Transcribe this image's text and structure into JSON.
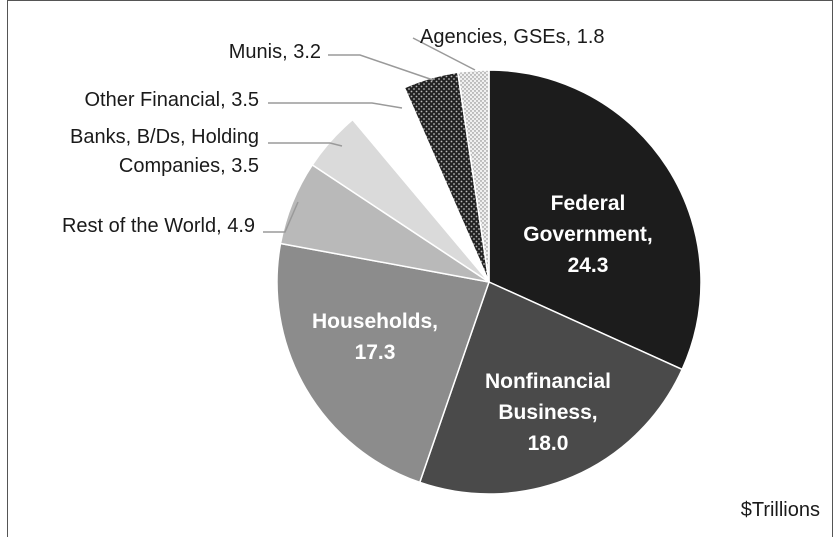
{
  "chart_data": {
    "type": "pie",
    "unit_label": "$Trillions",
    "slices": [
      {
        "name": "Federal Government,",
        "value": 24.3,
        "color": "#1c1c1c",
        "label_lines": [
          "Federal",
          "Government,",
          "24.3"
        ],
        "inside": true
      },
      {
        "name": "Nonfinancial Business,",
        "value": 18.0,
        "color": "#4a4a4a",
        "label_lines": [
          "Nonfinancial",
          "Business,",
          "18.0"
        ],
        "inside": true
      },
      {
        "name": "Households,",
        "value": 17.3,
        "color": "#8c8c8c",
        "label_lines": [
          "Households,",
          "17.3"
        ],
        "inside": true
      },
      {
        "name": "Rest of the World,",
        "value": 4.9,
        "color": "#b9b9b9",
        "label_lines": [
          "Rest of the World, 4.9"
        ],
        "inside": false
      },
      {
        "name": "Banks, B/Ds, Holding Companies,",
        "value": 3.5,
        "color": "#dadada",
        "label_lines": [
          "Banks, B/Ds, Holding",
          "Companies, 3.5"
        ],
        "inside": false
      },
      {
        "name": "Other Financial,",
        "value": 3.5,
        "color": "#ffffff",
        "label_lines": [
          "Other Financial, 3.5"
        ],
        "inside": false
      },
      {
        "name": "Munis,",
        "value": 3.2,
        "color": "#2a2a2a",
        "pattern": "dots-light",
        "label_lines": [
          "Munis, 3.2"
        ],
        "inside": false
      },
      {
        "name": "Agencies, GSEs,",
        "value": 1.8,
        "color": "#e8e8e8",
        "pattern": "dots-dark",
        "label_lines": [
          "Agencies, GSEs, 1.8"
        ],
        "inside": false
      }
    ]
  }
}
